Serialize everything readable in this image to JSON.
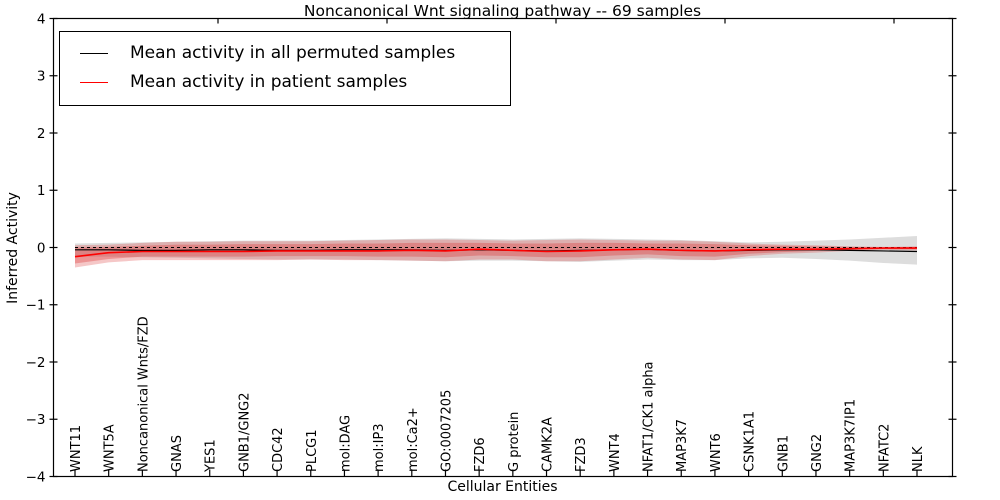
{
  "title": "Noncanonical Wnt signaling pathway -- 69 samples",
  "legend": {
    "items": [
      {
        "label": "Mean activity in all permuted samples",
        "color": "#000000"
      },
      {
        "label": "Mean activity in patient samples",
        "color": "#ff0000"
      }
    ]
  },
  "chart_data": {
    "type": "line",
    "title": "Noncanonical Wnt signaling pathway -- 69 samples",
    "xlabel": "Cellular Entities",
    "ylabel": "Inferred Activity",
    "ylim": [
      -4,
      4
    ],
    "yticks": [
      4,
      3,
      2,
      1,
      0,
      -1,
      -2,
      -3,
      -4
    ],
    "grid": false,
    "legend_position": "upper left",
    "categories": [
      "WNT11",
      "WNT5A",
      "Noncanonical Wnts/FZD",
      "GNAS",
      "YES1",
      "GNB1/GNG2",
      "CDC42",
      "PLCG1",
      "mol:DAG",
      "mol:IP3",
      "mol:Ca2+",
      "GO:0007205",
      "FZD6",
      "G protein",
      "CAMK2A",
      "FZD3",
      "WNT4",
      "NFAT1/CK1 alpha",
      "MAP3K7",
      "WNT6",
      "CSNK1A1",
      "GNB1",
      "GNG2",
      "MAP3K7IP1",
      "NFATC2",
      "NLK"
    ],
    "series": [
      {
        "name": "Mean activity in all permuted samples",
        "color": "#000000",
        "width": 1.2,
        "values": [
          -0.04,
          -0.04,
          -0.05,
          -0.05,
          -0.04,
          -0.04,
          -0.05,
          -0.05,
          -0.04,
          -0.04,
          -0.04,
          -0.05,
          -0.04,
          -0.05,
          -0.06,
          -0.05,
          -0.04,
          -0.03,
          -0.05,
          -0.06,
          -0.05,
          -0.04,
          -0.04,
          -0.05,
          -0.06,
          -0.07
        ]
      },
      {
        "name": "Mean activity in patient samples",
        "color": "#ff0000",
        "width": 1.6,
        "values": [
          -0.16,
          -0.09,
          -0.07,
          -0.07,
          -0.07,
          -0.07,
          -0.06,
          -0.06,
          -0.06,
          -0.06,
          -0.05,
          -0.06,
          -0.03,
          -0.05,
          -0.07,
          -0.06,
          -0.04,
          -0.03,
          -0.05,
          -0.06,
          -0.04,
          -0.03,
          -0.03,
          -0.02,
          -0.01,
          -0.01
        ]
      }
    ],
    "baseline": {
      "value": 0,
      "style": "dashed",
      "color": "#000000"
    },
    "bands": [
      {
        "name": "permuted-std-band",
        "color": "#aaaaaa",
        "opacity": 0.4,
        "upper": [
          0.07,
          0.08,
          0.09,
          0.1,
          0.11,
          0.12,
          0.12,
          0.12,
          0.13,
          0.14,
          0.15,
          0.16,
          0.15,
          0.14,
          0.15,
          0.16,
          0.15,
          0.14,
          0.13,
          0.11,
          0.09,
          0.1,
          0.12,
          0.14,
          0.17,
          0.2
        ],
        "lower": [
          -0.16,
          -0.16,
          -0.17,
          -0.18,
          -0.19,
          -0.2,
          -0.21,
          -0.21,
          -0.21,
          -0.22,
          -0.23,
          -0.24,
          -0.23,
          -0.23,
          -0.24,
          -0.25,
          -0.23,
          -0.21,
          -0.22,
          -0.22,
          -0.19,
          -0.18,
          -0.2,
          -0.23,
          -0.27,
          -0.3
        ]
      },
      {
        "name": "patient-std-outer-band",
        "color": "#dd4444",
        "opacity": 0.3,
        "upper": [
          0.04,
          0.05,
          0.08,
          0.1,
          0.1,
          0.11,
          0.11,
          0.11,
          0.12,
          0.13,
          0.14,
          0.14,
          0.13,
          0.12,
          0.13,
          0.14,
          0.13,
          0.12,
          0.12,
          0.1,
          0.07,
          0.05,
          0.04,
          0.02,
          0.01,
          0.02
        ],
        "lower": [
          -0.35,
          -0.26,
          -0.22,
          -0.22,
          -0.22,
          -0.22,
          -0.22,
          -0.21,
          -0.22,
          -0.22,
          -0.23,
          -0.24,
          -0.21,
          -0.21,
          -0.24,
          -0.24,
          -0.21,
          -0.18,
          -0.21,
          -0.22,
          -0.15,
          -0.11,
          -0.09,
          -0.06,
          -0.04,
          -0.05
        ]
      },
      {
        "name": "patient-std-inner-band",
        "color": "#dd3333",
        "opacity": 0.34,
        "upper": [
          0.0,
          0.01,
          0.03,
          0.05,
          0.05,
          0.06,
          0.06,
          0.06,
          0.07,
          0.07,
          0.08,
          0.08,
          0.08,
          0.07,
          0.07,
          0.08,
          0.08,
          0.07,
          0.07,
          0.06,
          0.04,
          0.03,
          0.02,
          0.01,
          0.0,
          0.01
        ],
        "lower": [
          -0.28,
          -0.2,
          -0.16,
          -0.16,
          -0.16,
          -0.16,
          -0.15,
          -0.15,
          -0.15,
          -0.16,
          -0.16,
          -0.17,
          -0.14,
          -0.15,
          -0.17,
          -0.17,
          -0.14,
          -0.12,
          -0.15,
          -0.16,
          -0.11,
          -0.08,
          -0.06,
          -0.04,
          -0.03,
          -0.03
        ]
      }
    ]
  }
}
